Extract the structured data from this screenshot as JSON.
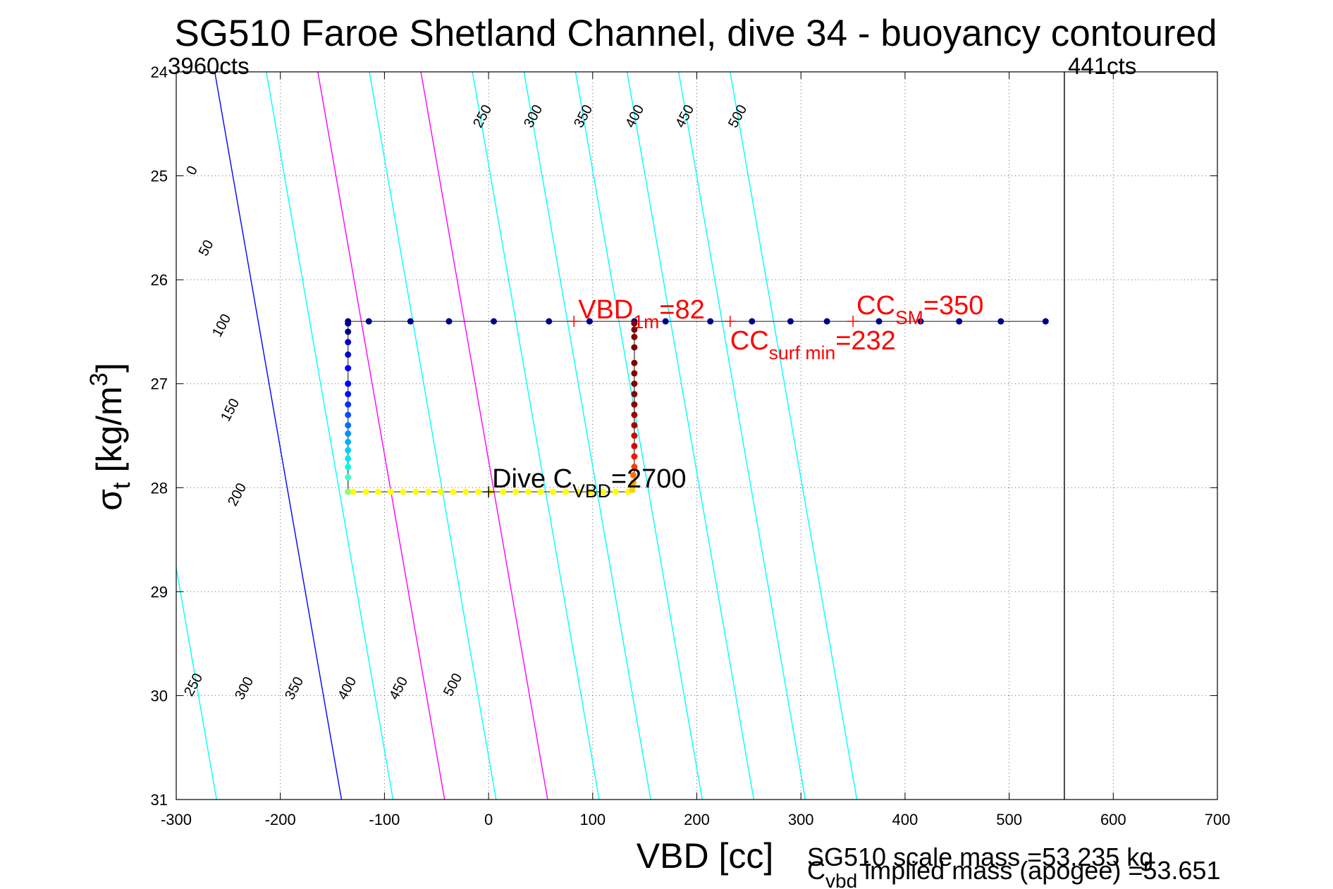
{
  "chart_data": {
    "type": "scatter",
    "title": "SG510 Faroe Shetland Channel, dive 34 - buoyancy contoured",
    "xlabel": "VBD [cc]",
    "ylabel_main": "σ",
    "ylabel_sub": "t",
    "ylabel_unit_pre": " [kg/m",
    "ylabel_unit_sup": "3",
    "ylabel_unit_post": "]",
    "xlim": [
      -300,
      700
    ],
    "ylim": [
      24,
      31
    ],
    "y_reversed": true,
    "grid": true,
    "x_ticks": [
      "-300",
      "-200",
      "-100",
      "0",
      "100",
      "200",
      "300",
      "400",
      "500",
      "600",
      "700"
    ],
    "y_ticks": [
      "24",
      "25",
      "26",
      "27",
      "28",
      "29",
      "30",
      "31"
    ],
    "corner_labels": {
      "left": "3960cts",
      "right": "441cts"
    },
    "vbd_limit_line": {
      "x": 553,
      "color": "#000000"
    },
    "contours": {
      "levels": [
        0,
        50,
        100,
        150,
        200,
        250,
        300,
        350,
        400,
        450,
        500
      ],
      "colors": {
        "0": "#0000ff",
        "100": "#ff00ff",
        "200": "#ff00ff",
        "default": "#00ffff"
      },
      "top_labels": [
        "250",
        "300",
        "350",
        "400",
        "450",
        "500"
      ],
      "left_labels": [
        "0",
        "50",
        "100",
        "150",
        "200"
      ],
      "bottom_labels": [
        "250",
        "300",
        "350",
        "400",
        "450",
        "500"
      ]
    },
    "series": [
      {
        "role": "surface_top",
        "color": "#00008b",
        "x": [
          -135,
          -115,
          -75,
          -38,
          5,
          58,
          97,
          140,
          170,
          213,
          253,
          290,
          325,
          375,
          415,
          452,
          492,
          535
        ],
        "y": [
          26.4,
          26.4,
          26.4,
          26.4,
          26.4,
          26.4,
          26.4,
          26.4,
          26.4,
          26.4,
          26.4,
          26.4,
          26.4,
          26.4,
          26.4,
          26.4,
          26.4,
          26.4
        ]
      },
      {
        "role": "descent_left_column",
        "x": [
          -135,
          -135,
          -135,
          -135,
          -135,
          -135,
          -135,
          -135,
          -135,
          -135,
          -135,
          -135,
          -135,
          -135,
          -135,
          -135,
          -135
        ],
        "y": [
          26.42,
          26.5,
          26.6,
          26.72,
          26.85,
          27.0,
          27.1,
          27.2,
          27.3,
          27.4,
          27.48,
          27.56,
          27.64,
          27.72,
          27.8,
          27.9,
          28.04
        ],
        "colors": [
          "#00008b",
          "#00008b",
          "#0000cd",
          "#0000cd",
          "#0000ff",
          "#0000ff",
          "#0010ff",
          "#0030ff",
          "#0050ff",
          "#0070ff",
          "#0090ff",
          "#00b0ff",
          "#00d0ff",
          "#00e8f0",
          "#00ffe0",
          "#40ffc0",
          "#80ff80"
        ]
      },
      {
        "role": "bottom_row",
        "color": "#ffff00",
        "x": [
          -130,
          -118,
          -106,
          -94,
          -82,
          -70,
          -58,
          -46,
          -34,
          -22,
          -10,
          2,
          14,
          26,
          38,
          50,
          62,
          74,
          86,
          98,
          110,
          122,
          134
        ],
        "y": [
          28.04,
          28.04,
          28.04,
          28.04,
          28.04,
          28.04,
          28.04,
          28.04,
          28.04,
          28.04,
          28.04,
          28.04,
          28.04,
          28.04,
          28.04,
          28.04,
          28.04,
          28.04,
          28.04,
          28.04,
          28.04,
          28.04,
          28.04
        ]
      },
      {
        "role": "ascent_right_column",
        "x": [
          138,
          139,
          139,
          140,
          140,
          140,
          140,
          140,
          140,
          140,
          140,
          140,
          140,
          140,
          140,
          140,
          140,
          140
        ],
        "y": [
          28.02,
          27.95,
          27.88,
          27.8,
          27.7,
          27.6,
          27.5,
          27.4,
          27.3,
          27.2,
          27.1,
          27.0,
          26.9,
          26.8,
          26.65,
          26.55,
          26.48,
          26.42
        ],
        "colors": [
          "#ffd000",
          "#ffa000",
          "#ff7000",
          "#ff4000",
          "#ff1000",
          "#e00000",
          "#cc0000",
          "#b00000",
          "#a00000",
          "#900000",
          "#880000",
          "#800000",
          "#800000",
          "#800000",
          "#800000",
          "#800000",
          "#800000",
          "#800000"
        ]
      }
    ],
    "annotations": [
      {
        "role": "vbd",
        "x": 82,
        "y": 26.4,
        "color": "#ff0000",
        "main": "VBD",
        "sub": "1m",
        "tail": "=82"
      },
      {
        "role": "cc_surf",
        "x": 232,
        "y": 26.4,
        "color": "#ff0000",
        "main": "CC",
        "sub": "surf min",
        "tail": "=232"
      },
      {
        "role": "cc_sm",
        "x": 350,
        "y": 26.4,
        "color": "#ff0000",
        "main": "CC",
        "sub": "SM",
        "tail": "=350"
      },
      {
        "role": "dive_c",
        "x": 0,
        "y": 28.04,
        "color": "#000000",
        "main": "Dive C",
        "sub": "VBD",
        "tail": "=2700"
      }
    ],
    "footer": {
      "line1": "SG510 scale mass =53.235 kg",
      "line2_main": "C",
      "line2_sub": "vbd",
      "line2_tail": " implied mass (apogee) =53.651"
    }
  }
}
